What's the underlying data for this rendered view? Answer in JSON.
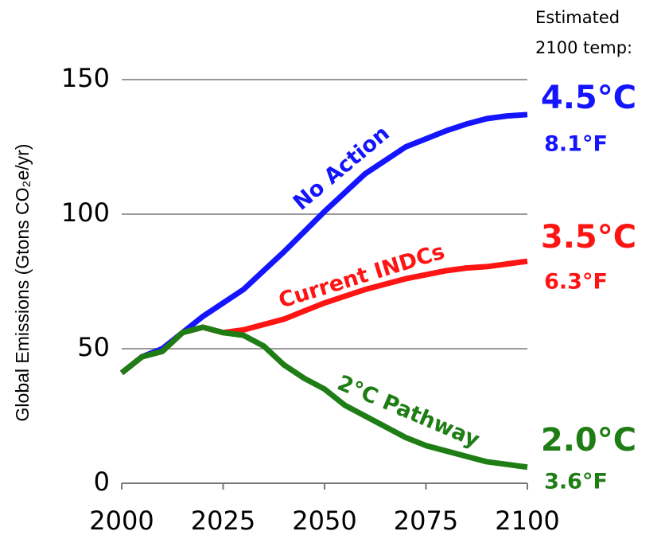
{
  "chart_data": {
    "type": "line",
    "y_label": "Global Emissions (Gtons CO₂e/yr)",
    "header": [
      "Estimated",
      "2100 temp:"
    ],
    "x": [
      2000,
      2005,
      2010,
      2015,
      2020,
      2025,
      2030,
      2035,
      2040,
      2045,
      2050,
      2055,
      2060,
      2065,
      2070,
      2075,
      2080,
      2085,
      2090,
      2095,
      2100
    ],
    "series": [
      {
        "name": "No Action",
        "color": "#1414ff",
        "end_label": "4.5°C",
        "end_label_f": "8.1°F",
        "values": [
          41,
          47,
          50,
          56,
          62,
          67,
          72,
          79,
          86,
          93.5,
          101,
          108,
          115,
          120,
          125,
          128,
          131,
          133.5,
          135.5,
          136.5,
          137
        ]
      },
      {
        "name": "Current INDCs",
        "color": "#ff1414",
        "end_label": "3.5°C",
        "end_label_f": "6.3°F",
        "values": [
          41,
          47,
          49,
          56,
          58,
          56,
          57,
          59,
          61,
          64,
          67,
          69.5,
          72,
          74,
          76,
          77.5,
          79,
          80,
          80.5,
          81.5,
          82.5
        ]
      },
      {
        "name": "2°C Pathway",
        "color": "#1e7d14",
        "end_label": "2.0°C",
        "end_label_f": "3.6°F",
        "values": [
          41,
          47,
          49,
          56,
          58,
          56,
          55,
          51,
          44,
          39,
          35,
          29,
          25,
          21,
          17,
          14,
          12,
          10,
          8,
          7,
          6
        ]
      }
    ],
    "xlim": [
      2000,
      2100
    ],
    "xticks": [
      2000,
      2025,
      2050,
      2075,
      2100
    ],
    "ylim": [
      0,
      150
    ],
    "yticks": [
      0,
      50,
      100,
      150
    ],
    "grid": true
  }
}
